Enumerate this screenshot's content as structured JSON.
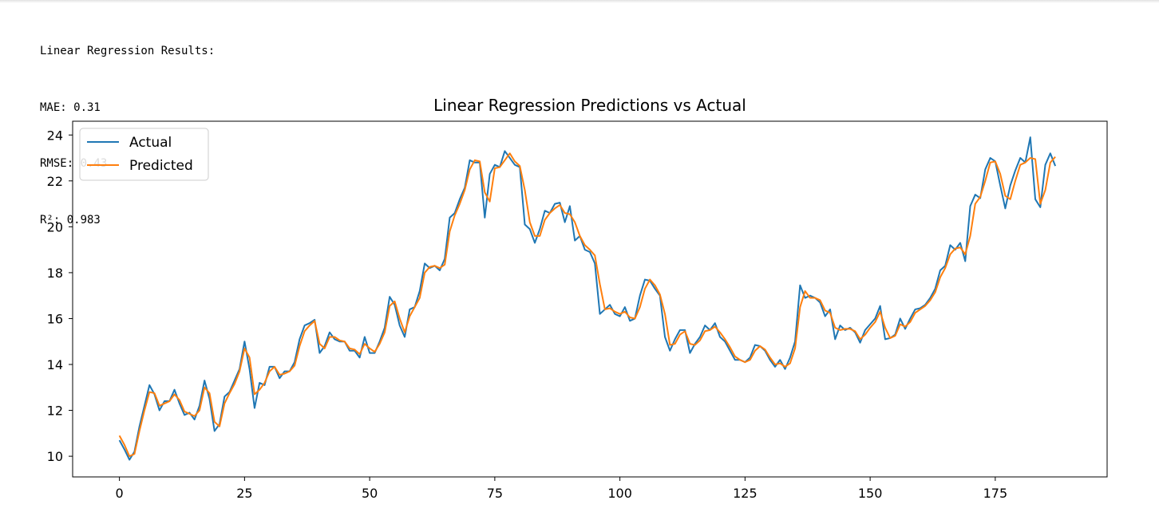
{
  "output": {
    "lines": [
      "Linear Regression Results:",
      "MAE: 0.31",
      "RMSE: 0.43",
      "R²: 0.983"
    ]
  },
  "chart_data": {
    "type": "line",
    "title": "Linear Regression Predictions vs Actual",
    "xlabel": "",
    "ylabel": "",
    "xlim": [
      -9.35,
      197.35
    ],
    "ylim": [
      9.1,
      24.6
    ],
    "xticks": [
      0,
      25,
      50,
      75,
      100,
      125,
      150,
      175
    ],
    "yticks": [
      10,
      12,
      14,
      16,
      18,
      20,
      22,
      24
    ],
    "legend_position": "upper-left",
    "grid": false,
    "series": [
      {
        "name": "Actual",
        "color": "#1f77b4",
        "values": [
          10.7,
          10.3,
          9.85,
          10.2,
          11.3,
          12.2,
          13.1,
          12.7,
          12.0,
          12.4,
          12.4,
          12.9,
          12.3,
          11.8,
          11.9,
          11.6,
          12.2,
          13.3,
          12.5,
          11.1,
          11.4,
          12.6,
          12.8,
          13.3,
          13.8,
          15.0,
          13.8,
          12.1,
          13.2,
          13.1,
          13.9,
          13.9,
          13.4,
          13.7,
          13.7,
          14.1,
          15.1,
          15.7,
          15.8,
          15.95,
          14.5,
          14.8,
          15.4,
          15.1,
          15.0,
          15.0,
          14.6,
          14.6,
          14.3,
          15.2,
          14.5,
          14.5,
          15.0,
          15.6,
          16.95,
          16.6,
          15.7,
          15.2,
          16.4,
          16.5,
          17.2,
          18.4,
          18.2,
          18.3,
          18.1,
          18.6,
          20.4,
          20.6,
          21.2,
          21.7,
          22.9,
          22.8,
          22.8,
          20.4,
          22.3,
          22.7,
          22.6,
          23.3,
          23.0,
          22.7,
          22.6,
          20.1,
          19.9,
          19.3,
          19.9,
          20.7,
          20.6,
          21.0,
          21.05,
          20.2,
          20.9,
          19.4,
          19.6,
          19.0,
          18.9,
          18.4,
          16.2,
          16.4,
          16.6,
          16.2,
          16.1,
          16.5,
          15.9,
          16.0,
          17.0,
          17.7,
          17.65,
          17.3,
          17.0,
          15.2,
          14.6,
          15.1,
          15.5,
          15.5,
          14.5,
          14.9,
          15.2,
          15.7,
          15.5,
          15.8,
          15.2,
          15.0,
          14.6,
          14.2,
          14.2,
          14.1,
          14.3,
          14.85,
          14.8,
          14.6,
          14.2,
          13.9,
          14.2,
          13.8,
          14.3,
          15.0,
          17.45,
          16.9,
          17.0,
          16.9,
          16.7,
          16.1,
          16.4,
          15.1,
          15.7,
          15.5,
          15.6,
          15.4,
          14.95,
          15.5,
          15.75,
          16.0,
          16.55,
          15.1,
          15.15,
          15.3,
          16.0,
          15.55,
          16.0,
          16.4,
          16.45,
          16.6,
          16.9,
          17.3,
          18.1,
          18.3,
          19.2,
          19.0,
          19.3,
          18.5,
          20.9,
          21.4,
          21.25,
          22.5,
          23.0,
          22.85,
          21.8,
          20.8,
          21.8,
          22.45,
          23.0,
          22.8,
          23.9,
          21.2,
          20.85,
          22.7,
          23.2,
          22.65
        ]
      },
      {
        "name": "Predicted",
        "color": "#ff7f0e",
        "values": [
          10.9,
          10.5,
          10.0,
          10.1,
          11.1,
          12.0,
          12.8,
          12.75,
          12.2,
          12.3,
          12.4,
          12.7,
          12.45,
          11.95,
          11.85,
          11.75,
          12.0,
          13.0,
          12.75,
          11.5,
          11.3,
          12.3,
          12.75,
          13.15,
          13.7,
          14.7,
          14.3,
          12.7,
          12.9,
          13.2,
          13.7,
          13.9,
          13.55,
          13.6,
          13.7,
          13.95,
          14.8,
          15.45,
          15.7,
          15.9,
          14.9,
          14.7,
          15.2,
          15.2,
          15.05,
          15.0,
          14.7,
          14.65,
          14.45,
          14.9,
          14.7,
          14.55,
          14.9,
          15.4,
          16.55,
          16.75,
          16.0,
          15.4,
          16.1,
          16.5,
          16.9,
          18.0,
          18.25,
          18.3,
          18.2,
          18.35,
          19.8,
          20.5,
          21.0,
          21.6,
          22.5,
          22.9,
          22.85,
          21.5,
          21.1,
          22.55,
          22.6,
          22.9,
          23.2,
          22.85,
          22.65,
          21.6,
          20.2,
          19.6,
          19.6,
          20.3,
          20.6,
          20.8,
          20.95,
          20.6,
          20.55,
          20.2,
          19.6,
          19.2,
          19.0,
          18.75,
          17.5,
          16.4,
          16.45,
          16.3,
          16.2,
          16.3,
          16.05,
          16.0,
          16.5,
          17.3,
          17.7,
          17.45,
          17.05,
          16.2,
          14.85,
          14.9,
          15.3,
          15.45,
          14.9,
          14.85,
          15.05,
          15.45,
          15.5,
          15.65,
          15.4,
          15.1,
          14.75,
          14.35,
          14.2,
          14.1,
          14.2,
          14.6,
          14.8,
          14.65,
          14.3,
          14.0,
          14.05,
          13.9,
          14.05,
          14.7,
          16.5,
          17.2,
          16.9,
          16.9,
          16.8,
          16.35,
          16.25,
          15.6,
          15.5,
          15.55,
          15.55,
          15.45,
          15.1,
          15.3,
          15.6,
          15.85,
          16.3,
          15.6,
          15.15,
          15.25,
          15.75,
          15.65,
          15.85,
          16.25,
          16.4,
          16.55,
          16.8,
          17.15,
          17.8,
          18.2,
          18.8,
          19.05,
          19.1,
          18.8,
          19.6,
          21.0,
          21.3,
          22.0,
          22.8,
          22.85,
          22.3,
          21.35,
          21.2,
          22.0,
          22.7,
          22.8,
          23.0,
          22.95,
          21.0,
          21.6,
          22.8,
          23.05
        ]
      }
    ]
  }
}
